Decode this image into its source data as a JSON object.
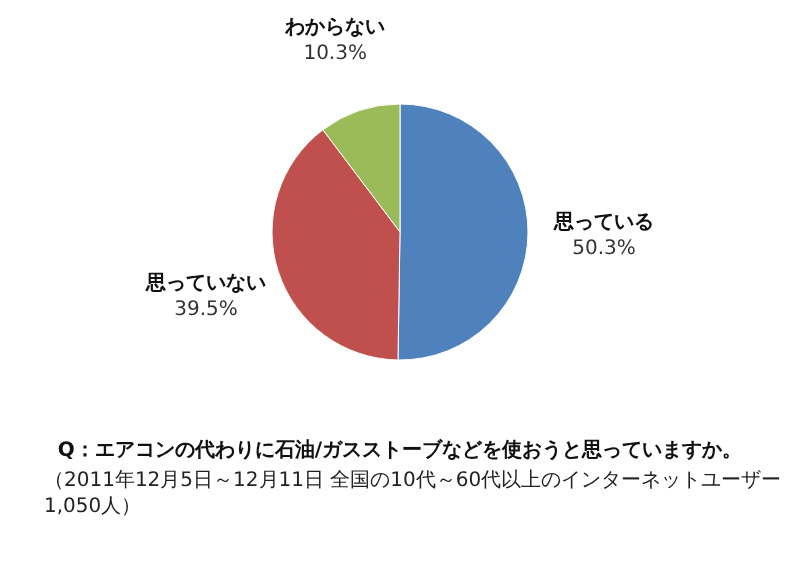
{
  "chart_data": {
    "type": "pie",
    "title": "Q：エアコンの代わりに石油/ガスストーブなどを使おうと思っていますか。",
    "categories": [
      "思っている",
      "思っていない",
      "わからない"
    ],
    "values": [
      50.3,
      39.5,
      10.3
    ],
    "value_labels": [
      "50.3%",
      "39.5%",
      "10.3%"
    ],
    "colors": [
      "#4f81bd",
      "#c0504d",
      "#9bbb59"
    ],
    "annotations": [
      "（2011年12月5日～12月11日 全国の10代～60代以上のインターネットユーザー1,050人）"
    ]
  }
}
